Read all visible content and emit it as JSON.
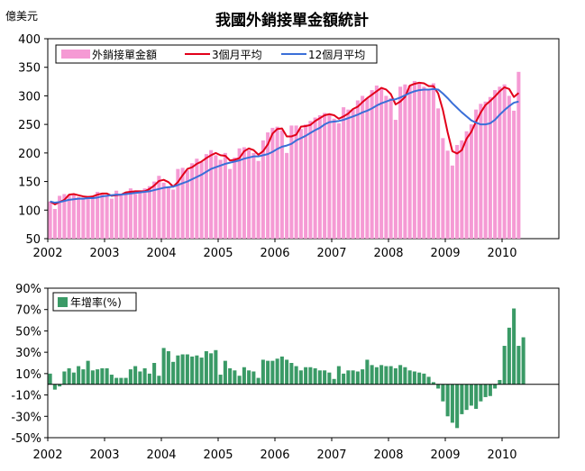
{
  "chart_data": [
    {
      "type": "bar",
      "title": "我國外銷接單金額統計",
      "ylabel": "億美元",
      "ylim": [
        50,
        400
      ],
      "yticks": [
        50,
        100,
        150,
        200,
        250,
        300,
        350,
        400
      ],
      "xlim": [
        2002,
        2011
      ],
      "xticks": [
        "2002",
        "2003",
        "2004",
        "2005",
        "2006",
        "2007",
        "2008",
        "2009",
        "2010"
      ],
      "grid": false,
      "legend_position": "top-left",
      "colors": {
        "bars": "#f59ad4",
        "ma3": "#e2001a",
        "ma12": "#3a6fd8"
      },
      "start": "2002-01",
      "series": [
        {
          "name": "外銷接單金額",
          "kind": "bar",
          "values": [
            115,
            102,
            125,
            128,
            127,
            128,
            123,
            122,
            125,
            124,
            132,
            130,
            125,
            120,
            134,
            126,
            132,
            138,
            128,
            132,
            138,
            142,
            150,
            160,
            148,
            140,
            136,
            172,
            174,
            170,
            182,
            190,
            184,
            198,
            205,
            196,
            188,
            200,
            172,
            192,
            208,
            210,
            205,
            200,
            186,
            222,
            236,
            244,
            246,
            240,
            200,
            248,
            248,
            242,
            250,
            256,
            262,
            266,
            270,
            268,
            260,
            252,
            280,
            276,
            276,
            292,
            300,
            296,
            310,
            318,
            314,
            300,
            296,
            258,
            316,
            320,
            318,
            326,
            324,
            316,
            312,
            322,
            278,
            226,
            204,
            178,
            214,
            222,
            238,
            250,
            276,
            286,
            290,
            298,
            310,
            316,
            320,
            300,
            274,
            342
          ]
        },
        {
          "name": "3個月平均",
          "kind": "line",
          "values": [
            115,
            110,
            114,
            118,
            127,
            128,
            126,
            124,
            123,
            124,
            127,
            129,
            129,
            125,
            126,
            127,
            131,
            132,
            133,
            133,
            133,
            137,
            143,
            151,
            153,
            149,
            141,
            149,
            161,
            172,
            175,
            181,
            185,
            191,
            196,
            200,
            196,
            195,
            187,
            188,
            191,
            203,
            208,
            205,
            197,
            203,
            215,
            234,
            242,
            243,
            229,
            229,
            232,
            246,
            247,
            249,
            256,
            261,
            266,
            268,
            266,
            260,
            264,
            269,
            277,
            281,
            289,
            296,
            302,
            308,
            314,
            311,
            303,
            285,
            290,
            298,
            318,
            321,
            323,
            322,
            317,
            317,
            304,
            275,
            236,
            203,
            199,
            205,
            225,
            237,
            255,
            271,
            284,
            291,
            299,
            308,
            315,
            312,
            298,
            305
          ]
        },
        {
          "name": "12個月平均",
          "kind": "line",
          "values": [
            115,
            113,
            114,
            116,
            118,
            119,
            120,
            120,
            121,
            121,
            122,
            124,
            125,
            126,
            127,
            127,
            128,
            129,
            130,
            131,
            132,
            133,
            135,
            137,
            139,
            140,
            141,
            144,
            147,
            150,
            154,
            158,
            162,
            167,
            172,
            175,
            178,
            181,
            183,
            185,
            187,
            190,
            192,
            194,
            194,
            196,
            198,
            202,
            207,
            211,
            213,
            216,
            222,
            226,
            230,
            235,
            240,
            244,
            250,
            254,
            255,
            256,
            258,
            261,
            264,
            267,
            271,
            274,
            278,
            283,
            287,
            290,
            293,
            294,
            297,
            301,
            305,
            308,
            310,
            311,
            311,
            312,
            311,
            304,
            296,
            287,
            279,
            271,
            264,
            257,
            253,
            250,
            250,
            252,
            258,
            267,
            275,
            282,
            288,
            290
          ]
        }
      ]
    },
    {
      "type": "bar",
      "ylim": [
        -50,
        90
      ],
      "yticks": [
        -50,
        -30,
        -10,
        10,
        30,
        50,
        70,
        90
      ],
      "ytick_format": "percent",
      "xlim": [
        2002,
        2011
      ],
      "xticks": [
        "2002",
        "2003",
        "2004",
        "2005",
        "2006",
        "2007",
        "2008",
        "2009",
        "2010"
      ],
      "grid": false,
      "legend_position": "top-left",
      "colors": {
        "bars": "#3a9a66"
      },
      "start": "2002-01",
      "series": [
        {
          "name": "年增率(%)",
          "kind": "bar",
          "values": [
            10,
            -5,
            -2,
            12,
            15,
            11,
            17,
            14,
            22,
            13,
            14,
            15,
            15,
            9,
            6,
            6,
            6,
            14,
            17,
            12,
            15,
            10,
            20,
            8,
            34,
            31,
            21,
            27,
            28,
            28,
            26,
            27,
            25,
            31,
            29,
            32,
            9,
            22,
            15,
            13,
            8,
            16,
            13,
            12,
            6,
            23,
            22,
            22,
            24,
            26,
            23,
            20,
            17,
            13,
            16,
            16,
            15,
            13,
            13,
            11,
            5,
            17,
            10,
            13,
            13,
            12,
            14,
            23,
            18,
            16,
            18,
            17,
            17,
            15,
            18,
            16,
            13,
            12,
            11,
            10,
            7,
            2,
            -4,
            -16,
            -30,
            -36,
            -41,
            -28,
            -24,
            -20,
            -23,
            -16,
            -12,
            -11,
            -4,
            4,
            36,
            53,
            71,
            36,
            44
          ]
        }
      ]
    }
  ]
}
